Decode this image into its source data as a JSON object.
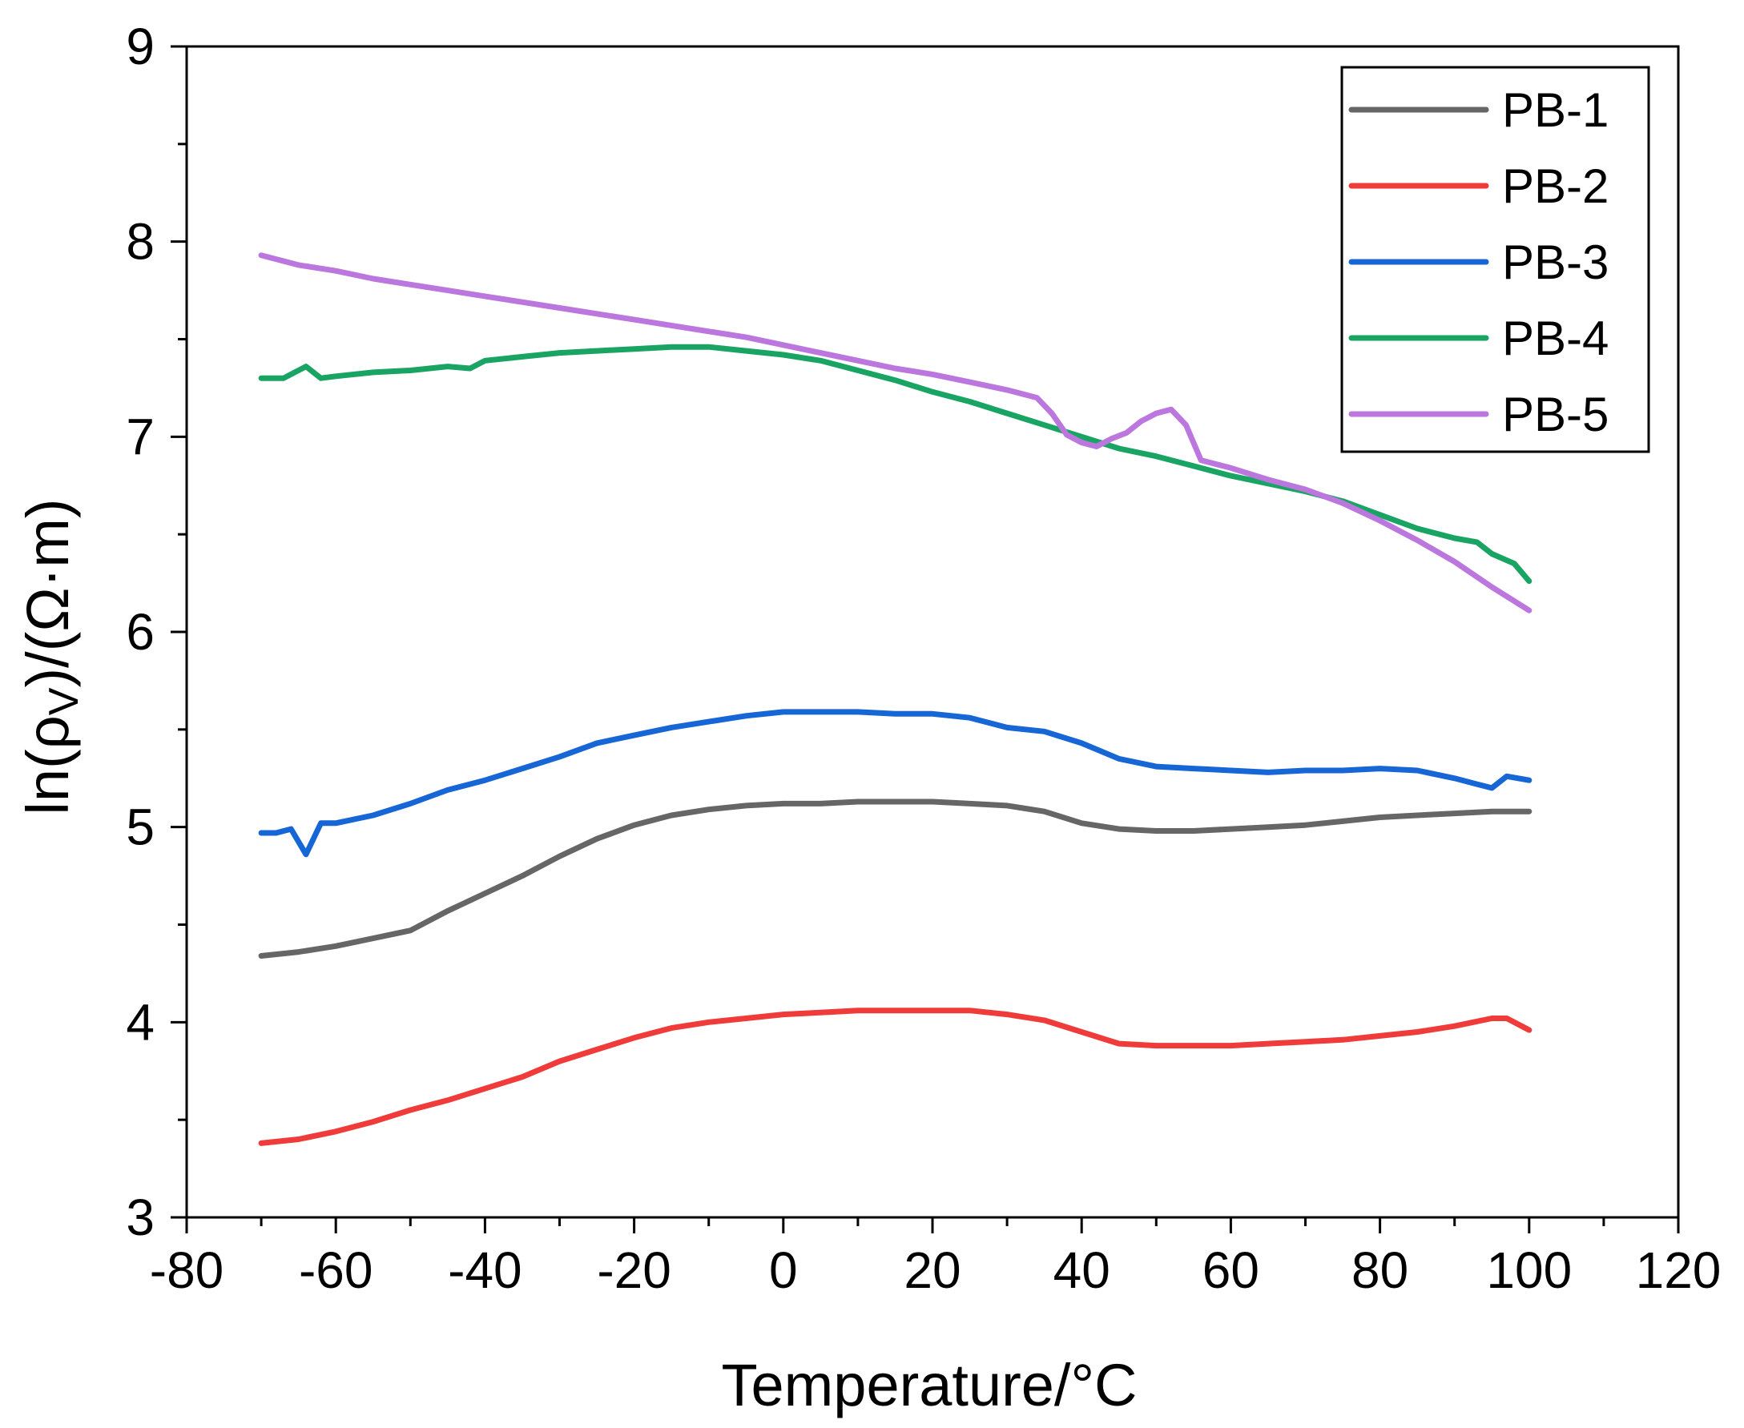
{
  "chart_data": {
    "type": "line",
    "title": "",
    "xlabel": "Temperature/°C",
    "ylabel": {
      "prefix": "ln(ρ",
      "subscript": "V",
      "suffix": ")/(Ω·m)"
    },
    "xlim": [
      -80,
      120
    ],
    "ylim": [
      3,
      9
    ],
    "x_ticks": [
      -80,
      -60,
      -40,
      -20,
      0,
      20,
      40,
      60,
      80,
      100,
      120
    ],
    "y_ticks": [
      3,
      4,
      5,
      6,
      7,
      8,
      9
    ],
    "grid": false,
    "legend_position": "top-right",
    "series": [
      {
        "name": "PB-1",
        "color": "#666666",
        "x": [
          -70,
          -65,
          -60,
          -55,
          -50,
          -45,
          -40,
          -35,
          -30,
          -25,
          -20,
          -15,
          -10,
          -5,
          0,
          5,
          10,
          15,
          20,
          25,
          30,
          35,
          40,
          45,
          50,
          55,
          60,
          65,
          70,
          75,
          80,
          85,
          90,
          95,
          100
        ],
        "y": [
          4.34,
          4.36,
          4.39,
          4.43,
          4.47,
          4.57,
          4.66,
          4.75,
          4.85,
          4.94,
          5.01,
          5.06,
          5.09,
          5.11,
          5.12,
          5.12,
          5.13,
          5.13,
          5.13,
          5.12,
          5.11,
          5.08,
          5.02,
          4.99,
          4.98,
          4.98,
          4.99,
          5.0,
          5.01,
          5.03,
          5.05,
          5.06,
          5.07,
          5.08,
          5.08
        ]
      },
      {
        "name": "PB-2",
        "color": "#f03b3b",
        "x": [
          -70,
          -65,
          -60,
          -55,
          -50,
          -45,
          -40,
          -35,
          -30,
          -25,
          -20,
          -15,
          -10,
          -5,
          0,
          5,
          10,
          15,
          20,
          25,
          30,
          35,
          40,
          45,
          50,
          55,
          60,
          65,
          70,
          75,
          80,
          85,
          90,
          95,
          97,
          100
        ],
        "y": [
          3.38,
          3.4,
          3.44,
          3.49,
          3.55,
          3.6,
          3.66,
          3.72,
          3.8,
          3.86,
          3.92,
          3.97,
          4.0,
          4.02,
          4.04,
          4.05,
          4.06,
          4.06,
          4.06,
          4.06,
          4.04,
          4.01,
          3.95,
          3.89,
          3.88,
          3.88,
          3.88,
          3.89,
          3.9,
          3.91,
          3.93,
          3.95,
          3.98,
          4.02,
          4.02,
          3.96
        ]
      },
      {
        "name": "PB-3",
        "color": "#1766d6",
        "x": [
          -70,
          -68,
          -66,
          -64,
          -62,
          -60,
          -55,
          -50,
          -45,
          -40,
          -35,
          -30,
          -25,
          -20,
          -15,
          -10,
          -5,
          0,
          5,
          10,
          15,
          20,
          25,
          30,
          35,
          40,
          45,
          50,
          55,
          60,
          65,
          70,
          75,
          80,
          85,
          90,
          93,
          95,
          97,
          100
        ],
        "y": [
          4.97,
          4.97,
          4.99,
          4.86,
          5.02,
          5.02,
          5.06,
          5.12,
          5.19,
          5.24,
          5.3,
          5.36,
          5.43,
          5.47,
          5.51,
          5.54,
          5.57,
          5.59,
          5.59,
          5.59,
          5.58,
          5.58,
          5.56,
          5.51,
          5.49,
          5.43,
          5.35,
          5.31,
          5.3,
          5.29,
          5.28,
          5.29,
          5.29,
          5.3,
          5.29,
          5.25,
          5.22,
          5.2,
          5.26,
          5.24
        ]
      },
      {
        "name": "PB-4",
        "color": "#1aa463",
        "x": [
          -70,
          -67,
          -64,
          -62,
          -60,
          -55,
          -50,
          -45,
          -42,
          -40,
          -35,
          -30,
          -25,
          -20,
          -15,
          -10,
          -5,
          0,
          5,
          10,
          15,
          20,
          25,
          30,
          35,
          40,
          45,
          50,
          55,
          60,
          65,
          70,
          75,
          80,
          85,
          90,
          93,
          95,
          98,
          100
        ],
        "y": [
          7.3,
          7.3,
          7.36,
          7.3,
          7.31,
          7.33,
          7.34,
          7.36,
          7.35,
          7.39,
          7.41,
          7.43,
          7.44,
          7.45,
          7.46,
          7.46,
          7.44,
          7.42,
          7.39,
          7.34,
          7.29,
          7.23,
          7.18,
          7.12,
          7.06,
          7.0,
          6.94,
          6.9,
          6.85,
          6.8,
          6.76,
          6.72,
          6.67,
          6.6,
          6.53,
          6.48,
          6.46,
          6.4,
          6.35,
          6.26
        ]
      },
      {
        "name": "PB-5",
        "color": "#bb77dd",
        "x": [
          -70,
          -65,
          -60,
          -55,
          -50,
          -45,
          -40,
          -35,
          -30,
          -25,
          -20,
          -15,
          -10,
          -5,
          0,
          5,
          10,
          15,
          20,
          25,
          30,
          34,
          36,
          38,
          40,
          42,
          44,
          46,
          48,
          50,
          52,
          54,
          56,
          60,
          65,
          70,
          75,
          80,
          85,
          90,
          95,
          100
        ],
        "y": [
          7.93,
          7.88,
          7.85,
          7.81,
          7.78,
          7.75,
          7.72,
          7.69,
          7.66,
          7.63,
          7.6,
          7.57,
          7.54,
          7.51,
          7.47,
          7.43,
          7.39,
          7.35,
          7.32,
          7.28,
          7.24,
          7.2,
          7.12,
          7.01,
          6.97,
          6.95,
          6.99,
          7.02,
          7.08,
          7.12,
          7.14,
          7.06,
          6.88,
          6.84,
          6.78,
          6.73,
          6.66,
          6.57,
          6.47,
          6.36,
          6.23,
          6.11
        ]
      }
    ]
  }
}
